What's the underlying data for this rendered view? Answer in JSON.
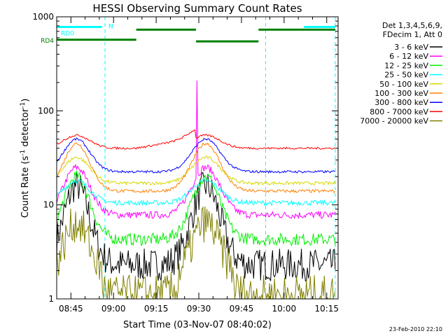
{
  "chart_data": {
    "type": "line",
    "title": "HESSI Observing Summary Count Rates",
    "xlabel": "Start Time (03-Nov-07 08:40:02)",
    "ylabel_main": "Count Rate (s",
    "ylabel_sup1": "-1",
    "ylabel_mid": " detector",
    "ylabel_sup2": "-1",
    "ylabel_end": ")",
    "y_scale": "log",
    "ylim": [
      1,
      1000
    ],
    "xlim_minutes": [
      0,
      99
    ],
    "x_tick_labels": [
      "08:45",
      "09:00",
      "09:15",
      "09:30",
      "09:45",
      "10:00",
      "10:15"
    ],
    "x_tick_minutes": [
      5,
      20,
      35,
      50,
      65,
      80,
      95
    ],
    "y_tick_labels": [
      "1",
      "10",
      "100",
      "1000"
    ],
    "y_tick_values": [
      1,
      10,
      100,
      1000
    ],
    "legend_header": [
      "Det 1,3,4,5,6,9,",
      "FDecim 1, Att 0"
    ],
    "legend_placement": "right",
    "series": [
      {
        "name": "3 - 6 keV",
        "color": "#000000",
        "base": 2.3,
        "peak": 16,
        "noise": 0.5
      },
      {
        "name": "6 - 12 keV",
        "color": "#ff00ff",
        "base": 7.8,
        "peak": 25,
        "noise": 0.18
      },
      {
        "name": "12 - 25 keV",
        "color": "#00ee00",
        "base": 4.3,
        "peak": 20,
        "noise": 0.3
      },
      {
        "name": "25 - 50 keV",
        "color": "#00ffff",
        "base": 10.5,
        "peak": 18,
        "noise": 0.12
      },
      {
        "name": "50 - 100 keV",
        "color": "#d8d800",
        "base": 17,
        "peak": 32,
        "noise": 0.08
      },
      {
        "name": "100 - 300 keV",
        "color": "#ff8000",
        "base": 14,
        "peak": 45,
        "noise": 0.08
      },
      {
        "name": "300 - 800 keV",
        "color": "#0000ff",
        "base": 22.5,
        "peak": 50,
        "noise": 0.06
      },
      {
        "name": "800 - 7000 keV",
        "color": "#ff0000",
        "base": 40,
        "peak": 55,
        "noise": 0.05
      },
      {
        "name": "7000 - 20000 keV",
        "color": "#808000",
        "base": 1.6,
        "peak": 6.5,
        "noise": 0.6
      }
    ],
    "flag_bars": [
      {
        "label": "RD0",
        "color": "#00ffff",
        "segments": [
          [
            0,
            16
          ],
          [
            87,
            98
          ]
        ],
        "level": 780
      },
      {
        "label": "RD4",
        "color": "#008000",
        "segments": [
          [
            0,
            28
          ],
          [
            28,
            49
          ],
          [
            49,
            71
          ],
          [
            71,
            98
          ]
        ],
        "level": 570
      },
      {
        "label": "N",
        "color": "#00ffff",
        "segments": [],
        "level": 780
      }
    ],
    "vertical_markers_minutes": [
      0,
      17,
      73.5,
      98
    ],
    "marker_color": "#00ffff",
    "timestamp": "23-Feb-2010 22:10"
  }
}
